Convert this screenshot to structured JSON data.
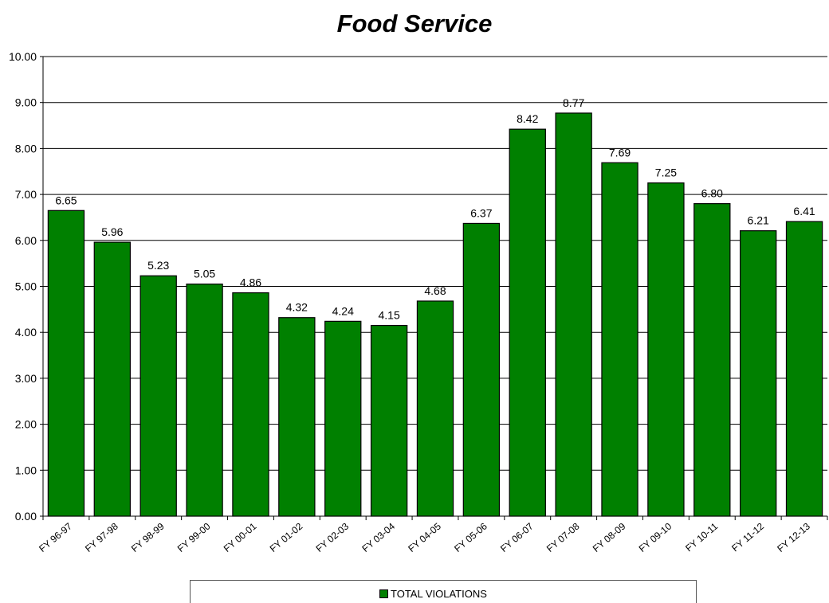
{
  "chart_data": {
    "type": "bar",
    "title": "Food Service",
    "xlabel": "",
    "ylabel": "",
    "ylim": [
      0,
      10
    ],
    "yticks": [
      "0.00",
      "1.00",
      "2.00",
      "3.00",
      "4.00",
      "5.00",
      "6.00",
      "7.00",
      "8.00",
      "9.00",
      "10.00"
    ],
    "grid": true,
    "legend_position": "bottom",
    "categories": [
      "FY 96-97",
      "FY 97-98",
      "FY 98-99",
      "FY 99-00",
      "FY 00-01",
      "FY 01-02",
      "FY 02-03",
      "FY 03-04",
      "FY 04-05",
      "FY 05-06",
      "FY 06-07",
      "FY 07-08",
      "FY 08-09",
      "FY 09-10",
      "FY 10-11",
      "FY 11-12",
      "FY 12-13"
    ],
    "series": [
      {
        "name": "TOTAL VIOLATIONS",
        "color": "#008000",
        "values": [
          6.65,
          5.96,
          5.23,
          5.05,
          4.86,
          4.32,
          4.24,
          4.15,
          4.68,
          6.37,
          8.42,
          8.77,
          7.69,
          7.25,
          6.8,
          6.21,
          6.41
        ],
        "labels": [
          "6.65",
          "5.96",
          "5.23",
          "5.05",
          "4.86",
          "4.32",
          "4.24",
          "4.15",
          "4.68",
          "6.37",
          "8.42",
          "8.77",
          "7.69",
          "7.25",
          "6.80",
          "6.21",
          "6.41"
        ]
      }
    ]
  }
}
